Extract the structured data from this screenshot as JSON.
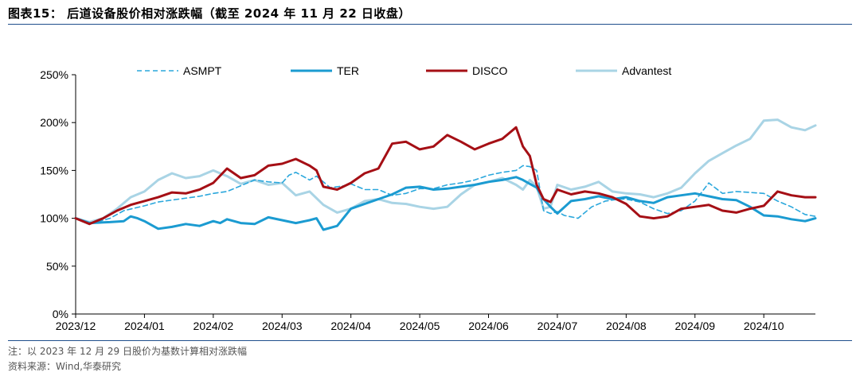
{
  "header": {
    "title": "图表15： 后道设备股价相对涨跌幅（截至 2024 年 11 月 22 日收盘）"
  },
  "footer": {
    "note": "注：以 2023 年 12 月 29 日股价为基数计算相对涨跌幅",
    "source": "资料来源：Wind,华泰研究"
  },
  "colors": {
    "ASMPT": "#2aa7dc",
    "TER": "#1b9bd1",
    "DISCO": "#a50f15",
    "Advantest": "#a9d4e5",
    "rule": "#1f4e8c"
  },
  "chart_data": {
    "type": "line",
    "title": "",
    "xlabel": "",
    "ylabel": "",
    "ylim": [
      0,
      250
    ],
    "yticks": [
      "0%",
      "50%",
      "100%",
      "150%",
      "200%",
      "250%"
    ],
    "x_tick_labels": [
      "2023/12",
      "2024/01",
      "2024/02",
      "2024/03",
      "2024/04",
      "2024/05",
      "2024/06",
      "2024/07",
      "2024/08",
      "2024/09",
      "2024/10"
    ],
    "x_range_months": [
      0,
      10.75
    ],
    "legend_position": "top",
    "series": [
      {
        "name": "ASMPT",
        "style": "dashed",
        "x": [
          0,
          0.2,
          0.5,
          0.7,
          1.0,
          1.2,
          1.5,
          1.8,
          2.0,
          2.2,
          2.4,
          2.6,
          2.8,
          3.0,
          3.1,
          3.2,
          3.4,
          3.5,
          3.7,
          3.9,
          4.0,
          4.2,
          4.4,
          4.6,
          4.8,
          5.0,
          5.2,
          5.4,
          5.6,
          5.8,
          6.0,
          6.2,
          6.4,
          6.5,
          6.6,
          6.7,
          6.8,
          6.9,
          7.0,
          7.1,
          7.3,
          7.5,
          7.7,
          7.9,
          8.0,
          8.2,
          8.4,
          8.6,
          8.8,
          9.0,
          9.2,
          9.4,
          9.6,
          9.8,
          10.0,
          10.2,
          10.4,
          10.6,
          10.75
        ],
        "y": [
          100,
          94,
          100,
          108,
          113,
          117,
          120,
          123,
          126,
          128,
          134,
          140,
          138,
          137,
          145,
          148,
          140,
          144,
          132,
          134,
          136,
          130,
          130,
          124,
          126,
          131,
          131,
          135,
          137,
          140,
          145,
          148,
          150,
          155,
          154,
          150,
          108,
          105,
          107,
          103,
          100,
          112,
          118,
          120,
          120,
          117,
          110,
          105,
          108,
          118,
          137,
          126,
          128,
          127,
          126,
          118,
          112,
          104,
          102
        ]
      },
      {
        "name": "TER",
        "style": "solid",
        "x": [
          0,
          0.2,
          0.5,
          0.7,
          0.8,
          0.9,
          1.0,
          1.2,
          1.4,
          1.6,
          1.8,
          2.0,
          2.1,
          2.2,
          2.3,
          2.4,
          2.6,
          2.8,
          3.0,
          3.2,
          3.4,
          3.5,
          3.6,
          3.8,
          4.0,
          4.2,
          4.4,
          4.6,
          4.8,
          5.0,
          5.2,
          5.4,
          5.6,
          5.8,
          6.0,
          6.2,
          6.4,
          6.5,
          6.6,
          6.7,
          6.8,
          6.9,
          7.0,
          7.2,
          7.4,
          7.6,
          7.8,
          8.0,
          8.2,
          8.4,
          8.6,
          8.8,
          9.0,
          9.2,
          9.4,
          9.6,
          9.8,
          10.0,
          10.2,
          10.4,
          10.6,
          10.75
        ],
        "y": [
          100,
          95,
          96,
          97,
          102,
          100,
          97,
          89,
          91,
          94,
          92,
          97,
          95,
          99,
          97,
          95,
          94,
          101,
          98,
          95,
          98,
          100,
          88,
          92,
          110,
          115,
          120,
          125,
          132,
          133,
          130,
          131,
          133,
          135,
          138,
          140,
          143,
          140,
          136,
          132,
          120,
          112,
          105,
          118,
          120,
          123,
          120,
          122,
          118,
          116,
          122,
          124,
          126,
          123,
          120,
          119,
          112,
          103,
          102,
          99,
          97,
          100
        ]
      },
      {
        "name": "DISCO",
        "style": "solid",
        "x": [
          0,
          0.2,
          0.4,
          0.6,
          0.8,
          1.0,
          1.2,
          1.4,
          1.6,
          1.8,
          2.0,
          2.2,
          2.4,
          2.6,
          2.8,
          3.0,
          3.2,
          3.4,
          3.5,
          3.6,
          3.8,
          4.0,
          4.2,
          4.4,
          4.6,
          4.8,
          5.0,
          5.2,
          5.4,
          5.6,
          5.8,
          6.0,
          6.2,
          6.4,
          6.5,
          6.6,
          6.7,
          6.8,
          6.9,
          7.0,
          7.2,
          7.4,
          7.6,
          7.8,
          8.0,
          8.2,
          8.4,
          8.6,
          8.8,
          9.0,
          9.2,
          9.4,
          9.6,
          9.8,
          10.0,
          10.2,
          10.4,
          10.6,
          10.75
        ],
        "y": [
          100,
          94,
          100,
          108,
          114,
          118,
          122,
          127,
          126,
          130,
          137,
          152,
          142,
          145,
          155,
          157,
          162,
          155,
          150,
          133,
          130,
          137,
          147,
          152,
          178,
          180,
          172,
          175,
          187,
          180,
          172,
          178,
          183,
          195,
          175,
          165,
          135,
          120,
          117,
          130,
          125,
          128,
          126,
          122,
          115,
          102,
          100,
          102,
          110,
          112,
          114,
          108,
          106,
          110,
          113,
          128,
          124,
          122,
          122
        ]
      },
      {
        "name": "Advantest",
        "style": "solid",
        "x": [
          0,
          0.2,
          0.4,
          0.6,
          0.8,
          1.0,
          1.2,
          1.4,
          1.6,
          1.8,
          2.0,
          2.2,
          2.4,
          2.6,
          2.8,
          3.0,
          3.2,
          3.4,
          3.6,
          3.8,
          4.0,
          4.2,
          4.4,
          4.6,
          4.8,
          5.0,
          5.2,
          5.4,
          5.6,
          5.8,
          6.0,
          6.2,
          6.4,
          6.5,
          6.6,
          6.7,
          6.8,
          6.9,
          7.0,
          7.2,
          7.4,
          7.6,
          7.8,
          8.0,
          8.2,
          8.4,
          8.6,
          8.8,
          9.0,
          9.2,
          9.4,
          9.6,
          9.8,
          10.0,
          10.2,
          10.4,
          10.6,
          10.75
        ],
        "y": [
          100,
          96,
          100,
          110,
          122,
          128,
          140,
          147,
          142,
          144,
          150,
          144,
          136,
          140,
          135,
          137,
          124,
          128,
          114,
          106,
          110,
          118,
          120,
          116,
          115,
          112,
          110,
          112,
          125,
          135,
          138,
          142,
          135,
          130,
          140,
          133,
          110,
          112,
          135,
          130,
          133,
          138,
          128,
          126,
          125,
          122,
          126,
          132,
          147,
          160,
          168,
          176,
          183,
          202,
          203,
          195,
          192,
          197
        ]
      }
    ]
  }
}
